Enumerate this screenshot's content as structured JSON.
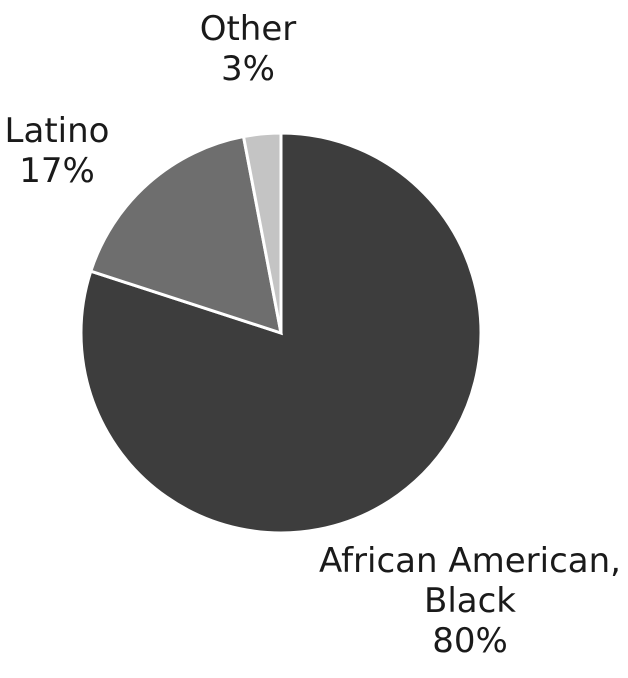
{
  "chart_data": {
    "type": "pie",
    "start_angle_deg": 0,
    "direction": "clockwise",
    "slices": [
      {
        "label": "African American, Black",
        "label_lines": [
          "African American,",
          "Black"
        ],
        "value": 80,
        "value_label": "80%",
        "color": "#3d3d3d"
      },
      {
        "label": "Latino",
        "label_lines": [
          "Latino"
        ],
        "value": 17,
        "value_label": "17%",
        "color": "#6e6e6e"
      },
      {
        "label": "Other",
        "label_lines": [
          "Other"
        ],
        "value": 3,
        "value_label": "3%",
        "color": "#c4c4c4"
      }
    ]
  }
}
